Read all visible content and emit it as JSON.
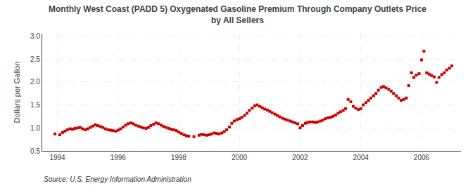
{
  "chart_data": {
    "type": "scatter",
    "title": "Monthly West Coast (PADD 5) Oxygenated Gasoline Premium Through Company Outlets Price\nby All Sellers",
    "ylabel": "Dollars per Gallon",
    "annotations": [
      "Source: U.S. Energy Information Administration"
    ],
    "color": "#cc0000",
    "marker": "square",
    "grid": true,
    "xlim": [
      1993.5,
      2007.3
    ],
    "ylim": [
      0.5,
      3.05
    ],
    "xticks": [
      1994,
      1996,
      1998,
      2000,
      2002,
      2004,
      2006
    ],
    "yticks": [
      0.5,
      {
        "value": 1.0,
        "label": "1.0"
      },
      1.5,
      {
        "value": 2.0,
        "label": "2.0"
      },
      2.5,
      {
        "value": 3.0,
        "label": "3.0"
      }
    ],
    "x": [
      1993.92,
      1994.08,
      1994.17,
      1994.25,
      1994.33,
      1994.42,
      1994.5,
      1994.58,
      1994.67,
      1994.75,
      1994.83,
      1994.92,
      1995.0,
      1995.08,
      1995.17,
      1995.25,
      1995.33,
      1995.42,
      1995.5,
      1995.58,
      1995.67,
      1995.75,
      1995.83,
      1995.92,
      1996.0,
      1996.08,
      1996.17,
      1996.25,
      1996.33,
      1996.42,
      1996.5,
      1996.58,
      1996.67,
      1996.75,
      1996.83,
      1996.92,
      1997.0,
      1997.08,
      1997.17,
      1997.25,
      1997.33,
      1997.42,
      1997.5,
      1997.58,
      1997.67,
      1997.75,
      1997.83,
      1997.92,
      1998.0,
      1998.08,
      1998.17,
      1998.25,
      1998.33,
      1998.5,
      1998.67,
      1998.75,
      1998.83,
      1998.92,
      1999.0,
      1999.08,
      1999.17,
      1999.25,
      1999.33,
      1999.42,
      1999.5,
      1999.58,
      1999.67,
      1999.75,
      1999.83,
      1999.92,
      2000.0,
      2000.08,
      2000.17,
      2000.25,
      2000.33,
      2000.42,
      2000.5,
      2000.58,
      2000.67,
      2000.75,
      2000.83,
      2000.92,
      2001.0,
      2001.08,
      2001.17,
      2001.25,
      2001.33,
      2001.42,
      2001.5,
      2001.58,
      2001.67,
      2001.75,
      2001.83,
      2001.92,
      2002.0,
      2002.08,
      2002.17,
      2002.25,
      2002.33,
      2002.42,
      2002.5,
      2002.58,
      2002.67,
      2002.75,
      2002.83,
      2002.92,
      2003.0,
      2003.08,
      2003.17,
      2003.25,
      2003.33,
      2003.42,
      2003.5,
      2003.58,
      2003.67,
      2003.75,
      2003.83,
      2003.92,
      2004.0,
      2004.08,
      2004.17,
      2004.25,
      2004.33,
      2004.42,
      2004.5,
      2004.58,
      2004.67,
      2004.75,
      2004.83,
      2004.92,
      2005.0,
      2005.08,
      2005.17,
      2005.25,
      2005.33,
      2005.42,
      2005.5,
      2005.58,
      2005.67,
      2005.75,
      2005.83,
      2005.92,
      2006.0,
      2006.08,
      2006.17,
      2006.25,
      2006.33,
      2006.42,
      2006.5,
      2006.58,
      2006.67,
      2006.75,
      2006.83,
      2006.92,
      2007.0
    ],
    "values": [
      0.87,
      0.85,
      0.9,
      0.93,
      0.96,
      0.98,
      0.97,
      0.99,
      1.0,
      1.01,
      0.98,
      0.96,
      0.98,
      1.01,
      1.04,
      1.07,
      1.05,
      1.03,
      1.01,
      0.98,
      0.96,
      0.95,
      0.94,
      0.93,
      0.95,
      0.98,
      1.02,
      1.06,
      1.09,
      1.11,
      1.09,
      1.06,
      1.04,
      1.02,
      1.0,
      0.99,
      1.01,
      1.05,
      1.08,
      1.11,
      1.09,
      1.06,
      1.03,
      1.01,
      0.99,
      0.97,
      0.96,
      0.94,
      0.91,
      0.88,
      0.85,
      0.83,
      0.82,
      0.81,
      0.84,
      0.86,
      0.85,
      0.84,
      0.85,
      0.87,
      0.89,
      0.88,
      0.87,
      0.89,
      0.92,
      0.96,
      1.02,
      1.1,
      1.15,
      1.18,
      1.2,
      1.23,
      1.27,
      1.32,
      1.38,
      1.43,
      1.48,
      1.5,
      1.47,
      1.44,
      1.41,
      1.39,
      1.36,
      1.33,
      1.3,
      1.27,
      1.24,
      1.21,
      1.19,
      1.17,
      1.15,
      1.13,
      1.11,
      1.09,
      1.0,
      1.05,
      1.1,
      1.12,
      1.13,
      1.13,
      1.12,
      1.13,
      1.15,
      1.17,
      1.2,
      1.22,
      1.23,
      1.25,
      1.28,
      1.32,
      1.35,
      1.38,
      1.42,
      1.62,
      1.57,
      1.47,
      1.43,
      1.4,
      1.42,
      1.5,
      1.55,
      1.6,
      1.65,
      1.7,
      1.75,
      1.82,
      1.88,
      1.9,
      1.87,
      1.84,
      1.8,
      1.75,
      1.7,
      1.65,
      1.6,
      1.62,
      1.65,
      1.92,
      2.2,
      2.1,
      2.15,
      2.18,
      2.48,
      2.67,
      2.2,
      2.17,
      2.14,
      2.11,
      1.99,
      2.1,
      2.16,
      2.2,
      2.26,
      2.3,
      2.35
    ]
  }
}
